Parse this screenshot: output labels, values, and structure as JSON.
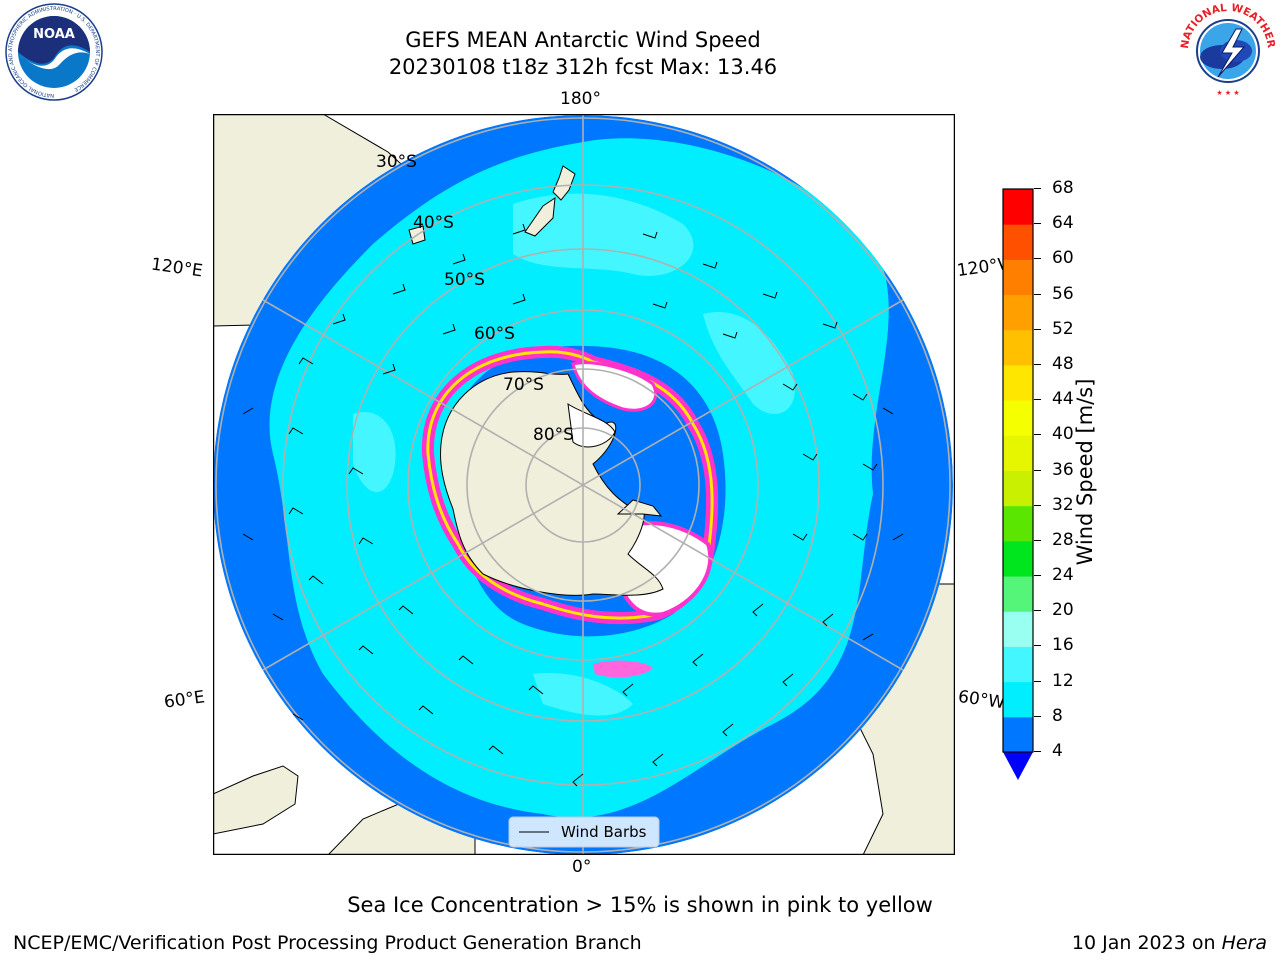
{
  "header": {
    "title_line1": "GEFS MEAN Antarctic Wind Speed",
    "title_line2": "20230108 t18z 312h fcst   Max: 13.46"
  },
  "logos": {
    "left": "noaa-logo",
    "left_text": "NOAA",
    "left_ring_text": "NATIONAL OCEANIC AND ATMOSPHERIC ADMINISTRATION · U.S. DEPARTMENT OF COMMERCE",
    "right": "nws-logo",
    "right_ring_text": "NATIONAL WEATHER SERVICE"
  },
  "map": {
    "projection": "south-polar-stereographic",
    "longitude_labels": {
      "top": "180°",
      "bottom": "0°",
      "upper_left": "120°E",
      "lower_left": "60°E",
      "upper_right": "120°W",
      "lower_right": "60°W"
    },
    "latitude_labels": [
      "30°S",
      "40°S",
      "50°S",
      "60°S",
      "70°S",
      "80°S"
    ],
    "legend_label": "Wind Barbs",
    "colors": {
      "land": "#efefdb",
      "ocean_4_8": "#0077ff",
      "ocean_8_12": "#00eeff",
      "ocean_12_16": "#44f6ff",
      "sea_ice": "#ff33cc",
      "grid": "#b0b0b0"
    }
  },
  "colorbar": {
    "label": "Wind Speed [m/s]",
    "ticks": [
      "4",
      "8",
      "12",
      "16",
      "20",
      "24",
      "28",
      "32",
      "36",
      "40",
      "44",
      "48",
      "52",
      "56",
      "60",
      "64",
      "68"
    ],
    "colors": [
      "#0077ff",
      "#00eeff",
      "#44f6ff",
      "#99fff0",
      "#55f57a",
      "#00e61e",
      "#5ae600",
      "#c8f000",
      "#e6f500",
      "#f5ff00",
      "#ffe600",
      "#ffc000",
      "#ffa000",
      "#ff8000",
      "#ff5000",
      "#ff0000"
    ],
    "under_color": "#0000ff"
  },
  "footer": {
    "note": "Sea Ice Concentration > 15% is shown in pink to yellow",
    "credit": "NCEP/EMC/Verification Post Processing Product Generation Branch",
    "date": "10 Jan 2023 on ",
    "machine": "Hera"
  }
}
